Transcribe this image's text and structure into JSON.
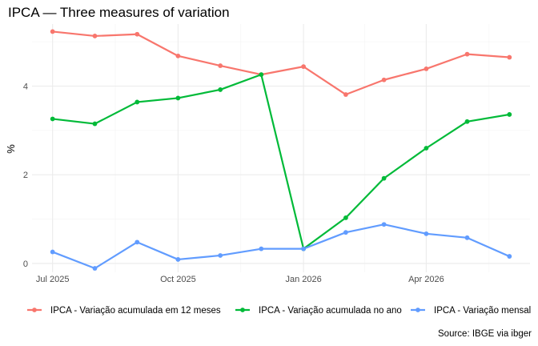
{
  "chart_data": {
    "type": "line",
    "title": "IPCA — Three measures of variation",
    "xlabel": "",
    "ylabel": "%",
    "caption": "Source: IBGE via ibger",
    "x": [
      "2025-07-01",
      "2025-08-01",
      "2025-09-01",
      "2025-10-01",
      "2025-11-01",
      "2025-12-01",
      "2026-01-01",
      "2026-02-01",
      "2026-03-01",
      "2026-04-01",
      "2026-05-01",
      "2026-06-01"
    ],
    "x_ticks": [
      {
        "date": "2025-07-01",
        "label": "Jul 2025"
      },
      {
        "date": "2025-10-01",
        "label": "Oct 2025"
      },
      {
        "date": "2026-01-01",
        "label": "Jan 2026"
      },
      {
        "date": "2026-04-01",
        "label": "Apr 2026"
      }
    ],
    "y_ticks": [
      0,
      2,
      4
    ],
    "ylim": [
      -0.2,
      5.4
    ],
    "grid": true,
    "legend_position": "bottom",
    "series": [
      {
        "name": "IPCA - Variação acumulada em 12 meses",
        "color": "#F8766D",
        "values": [
          5.23,
          5.13,
          5.17,
          4.68,
          4.46,
          4.26,
          4.44,
          3.81,
          4.14,
          4.39,
          4.72,
          4.65
        ]
      },
      {
        "name": "IPCA - Variação acumulada no ano",
        "color": "#00BA38",
        "values": [
          3.26,
          3.15,
          3.64,
          3.73,
          3.92,
          4.26,
          0.33,
          1.03,
          1.92,
          2.6,
          3.2,
          3.36
        ]
      },
      {
        "name": "IPCA - Variação mensal",
        "color": "#619CFF",
        "values": [
          0.26,
          -0.11,
          0.48,
          0.09,
          0.18,
          0.33,
          0.33,
          0.7,
          0.88,
          0.67,
          0.58,
          0.16
        ]
      }
    ]
  }
}
